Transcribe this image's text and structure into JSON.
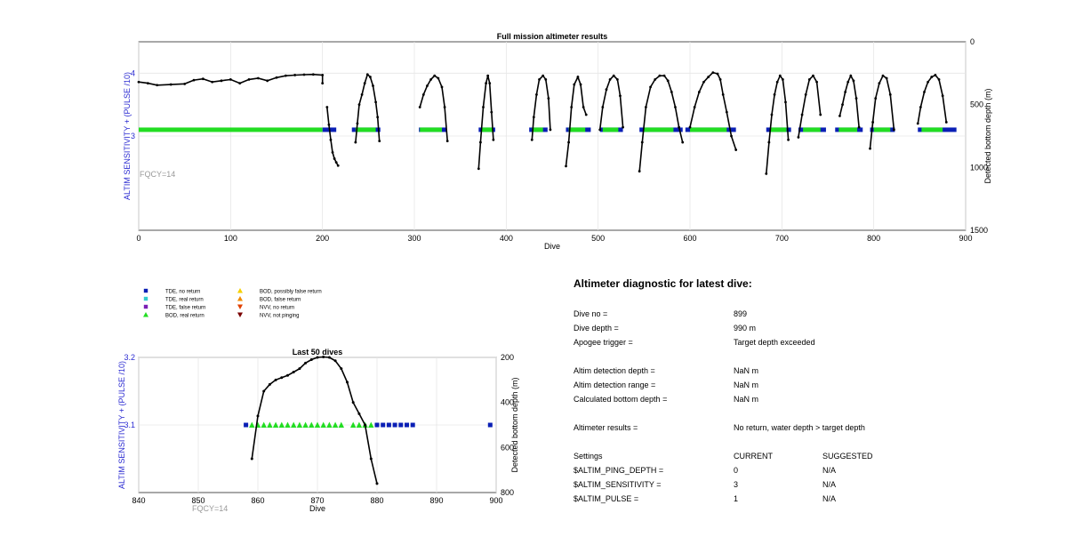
{
  "colors": {
    "tde_no_return": "#0a1fb5",
    "tde_real_return": "#33cccc",
    "tde_false_return": "#7a1fb5",
    "bod_real_return": "#22dd22",
    "bod_possibly_false": "#f5d000",
    "bod_false_return": "#f08a00",
    "nvv_no_return": "#e04000",
    "nvv_not_pinging": "#7a0000",
    "line": "#000000",
    "axis_label": "#2b2bd1",
    "fqcy": "#999999"
  },
  "chart_data": [
    {
      "type": "scatter",
      "title": "Full mission altimeter results",
      "xlabel": "Dive",
      "ylabel": "ALTIM SENSITIVITY + (PULSE /10)",
      "ylabel_right": "Detected bottom depth (m)",
      "xlim": [
        0,
        900
      ],
      "xticks": [
        0,
        100,
        200,
        300,
        400,
        500,
        600,
        700,
        800,
        900
      ],
      "ylim": [
        1.5,
        4.5
      ],
      "yticks": [
        3,
        4
      ],
      "ylim_right": [
        1500,
        0
      ],
      "yticks_right": [
        0,
        500,
        1000,
        1500
      ],
      "annotation": "FQCY=14",
      "grid": true,
      "sensitivity_value": 3.1,
      "bod_real_return_runs": [
        [
          0,
          200
        ],
        [
          236,
          258
        ],
        [
          306,
          330
        ],
        [
          373,
          385
        ],
        [
          428,
          440
        ],
        [
          468,
          486
        ],
        [
          505,
          522
        ],
        [
          550,
          582
        ],
        [
          600,
          640
        ],
        [
          688,
          705
        ],
        [
          723,
          742
        ],
        [
          762,
          782
        ],
        [
          800,
          818
        ],
        [
          852,
          875
        ]
      ],
      "tde_no_return_runs": [
        [
          200,
          215
        ],
        [
          232,
          263
        ],
        [
          305,
          335
        ],
        [
          370,
          388
        ],
        [
          425,
          445
        ],
        [
          465,
          492
        ],
        [
          502,
          527
        ],
        [
          545,
          592
        ],
        [
          595,
          650
        ],
        [
          683,
          710
        ],
        [
          718,
          748
        ],
        [
          758,
          788
        ],
        [
          796,
          823
        ],
        [
          848,
          890
        ]
      ],
      "depth_series": [
        {
          "name": "",
          "x": [
            0,
            10,
            20,
            35,
            50,
            60,
            70,
            80,
            90,
            100,
            110,
            120,
            130,
            140,
            150,
            160,
            170,
            180,
            190,
            200,
            200
          ],
          "y": [
            320,
            330,
            345,
            340,
            335,
            305,
            295,
            320,
            310,
            300,
            330,
            300,
            290,
            310,
            285,
            270,
            265,
            262,
            260,
            265,
            330
          ]
        },
        {
          "name": "",
          "x": [
            205,
            207,
            209,
            211,
            213,
            215,
            217
          ],
          "y": [
            520,
            660,
            780,
            880,
            930,
            960,
            985
          ]
        },
        {
          "name": "",
          "x": [
            236,
            238,
            240,
            243,
            246,
            249,
            252,
            255,
            258,
            260,
            262
          ],
          "y": [
            800,
            650,
            500,
            420,
            330,
            260,
            280,
            350,
            480,
            600,
            790
          ]
        },
        {
          "name": "",
          "x": [
            306,
            310,
            314,
            318,
            322,
            326,
            330,
            333,
            336
          ],
          "y": [
            520,
            420,
            350,
            300,
            270,
            290,
            360,
            520,
            790
          ]
        },
        {
          "name": "",
          "x": [
            370,
            372,
            375,
            378,
            380,
            382,
            384,
            386
          ],
          "y": [
            1010,
            800,
            520,
            330,
            270,
            330,
            560,
            780
          ]
        },
        {
          "name": "",
          "x": [
            428,
            430,
            433,
            436,
            440,
            443,
            446,
            448
          ],
          "y": [
            780,
            600,
            420,
            300,
            270,
            300,
            450,
            700
          ]
        },
        {
          "name": "",
          "x": [
            465,
            468,
            471,
            474,
            478,
            481,
            484,
            487
          ],
          "y": [
            990,
            800,
            520,
            340,
            280,
            340,
            520,
            580
          ]
        },
        {
          "name": "",
          "x": [
            502,
            505,
            509,
            513,
            517,
            521,
            524,
            527
          ],
          "y": [
            700,
            520,
            380,
            300,
            270,
            300,
            430,
            680
          ]
        },
        {
          "name": "",
          "x": [
            545,
            548,
            552,
            557,
            562,
            567,
            572,
            576,
            580,
            584,
            588,
            592
          ],
          "y": [
            1030,
            800,
            520,
            360,
            300,
            270,
            270,
            310,
            400,
            520,
            680,
            800
          ]
        },
        {
          "name": "",
          "x": [
            600,
            605,
            610,
            615,
            620,
            625,
            630,
            633,
            636,
            640,
            645,
            650
          ],
          "y": [
            680,
            520,
            400,
            320,
            280,
            245,
            255,
            300,
            420,
            560,
            750,
            860
          ]
        },
        {
          "name": "",
          "x": [
            683,
            686,
            689,
            692,
            695,
            698,
            701,
            704,
            707
          ],
          "y": [
            1050,
            800,
            580,
            420,
            320,
            270,
            300,
            480,
            780
          ]
        },
        {
          "name": "",
          "x": [
            718,
            722,
            726,
            730,
            734,
            738,
            742
          ],
          "y": [
            760,
            580,
            420,
            300,
            270,
            320,
            580
          ]
        },
        {
          "name": "",
          "x": [
            763,
            766,
            769,
            772,
            775,
            778,
            781,
            784
          ],
          "y": [
            590,
            500,
            400,
            320,
            270,
            310,
            450,
            680
          ]
        },
        {
          "name": "",
          "x": [
            796,
            799,
            802,
            806,
            810,
            814,
            818,
            822
          ],
          "y": [
            850,
            640,
            450,
            330,
            270,
            290,
            420,
            700
          ]
        },
        {
          "name": "",
          "x": [
            848,
            851,
            855,
            859,
            863,
            867,
            871,
            875,
            879
          ],
          "y": [
            650,
            520,
            400,
            320,
            280,
            265,
            300,
            430,
            640
          ]
        }
      ]
    },
    {
      "type": "scatter",
      "title": "Last 50 dives",
      "xlabel": "Dive",
      "ylabel": "ALTIM SENSITIVITY + (PULSE /10)",
      "ylabel_right": "Detected bottom depth (m)",
      "xlim": [
        840,
        900
      ],
      "xticks": [
        840,
        850,
        860,
        870,
        880,
        890,
        900
      ],
      "ylim": [
        3.0,
        3.2
      ],
      "yticks": [
        3.1,
        3.2
      ],
      "ylim_right": [
        800,
        200
      ],
      "yticks_right": [
        200,
        400,
        600,
        800
      ],
      "annotation": "FQCY=14",
      "grid": true,
      "sensitivity_value": 3.1,
      "tde_no_return_x": [
        858,
        880,
        881,
        882,
        883,
        884,
        885,
        886,
        899
      ],
      "bod_real_return_x": [
        859,
        860,
        861,
        862,
        863,
        864,
        865,
        866,
        867,
        868,
        869,
        870,
        871,
        872,
        873,
        874,
        876,
        877,
        878,
        879
      ],
      "depth_x": [
        859,
        860,
        861,
        862,
        863,
        864,
        865,
        866,
        867,
        868,
        869,
        870,
        871,
        872,
        873,
        874,
        875,
        876,
        877,
        878,
        879,
        880
      ],
      "depth_y": [
        650,
        460,
        350,
        320,
        300,
        290,
        280,
        265,
        250,
        225,
        210,
        200,
        198,
        200,
        215,
        250,
        310,
        400,
        450,
        500,
        650,
        760
      ]
    }
  ],
  "legend": [
    {
      "label": "TDE, no return",
      "marker": "square",
      "color_key": "tde_no_return"
    },
    {
      "label": "TDE, real return",
      "marker": "square",
      "color_key": "tde_real_return"
    },
    {
      "label": "TDE, false return",
      "marker": "square",
      "color_key": "tde_false_return"
    },
    {
      "label": "BOD, real return",
      "marker": "triangle-up",
      "color_key": "bod_real_return"
    },
    {
      "label": "BOD, possibly false return",
      "marker": "triangle-up",
      "color_key": "bod_possibly_false"
    },
    {
      "label": "BOD, false return",
      "marker": "triangle-up",
      "color_key": "bod_false_return"
    },
    {
      "label": "NVV, no return",
      "marker": "triangle-down",
      "color_key": "nvv_no_return"
    },
    {
      "label": "NVV, not pinging",
      "marker": "triangle-down",
      "color_key": "nvv_not_pinging"
    }
  ],
  "diagnostic": {
    "title": "Altimeter diagnostic for latest dive:",
    "dive_no_label": "Dive no =",
    "dive_no_value": "899",
    "dive_depth_label": "Dive depth =",
    "dive_depth_value": "990 m",
    "apogee_label": "Apogee trigger =",
    "apogee_value": "Target depth exceeded",
    "det_depth_label": "Altim detection depth =",
    "det_depth_value": "NaN m",
    "det_range_label": "Altim detection range =",
    "det_range_value": "NaN m",
    "calc_depth_label": "Calculated bottom depth =",
    "calc_depth_value": "NaN m",
    "results_label": "Altimeter results =",
    "results_value": "No return, water depth > target depth",
    "settings_label": "Settings",
    "current_label": "CURRENT",
    "suggested_label": "SUGGESTED",
    "settings": [
      {
        "name": "$ALTIM_PING_DEPTH =",
        "current": "0",
        "suggested": "N/A"
      },
      {
        "name": "$ALTIM_SENSITIVITY =",
        "current": "3",
        "suggested": "N/A"
      },
      {
        "name": "$ALTIM_PULSE =",
        "current": "1",
        "suggested": "N/A"
      }
    ]
  }
}
